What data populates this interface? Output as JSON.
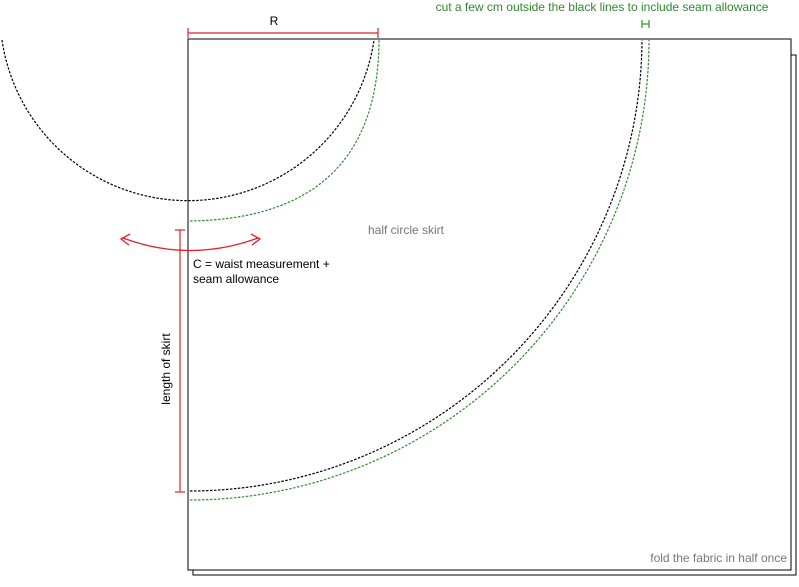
{
  "labels": {
    "radius": "R",
    "seam_note": "cut a few cm outside the black lines to include seam allowance",
    "center_text": "half circle skirt",
    "waist_line1": "C = waist measurement +",
    "waist_line2": "seam allowance",
    "length": "length of skirt",
    "fold": "fold the fabric in half once"
  },
  "colors": {
    "cut_line": "#000000",
    "seam_line": "#2e8b2e",
    "annotation": "#e5202a",
    "note_text": "#2e8b2e",
    "muted_text": "#777777"
  }
}
